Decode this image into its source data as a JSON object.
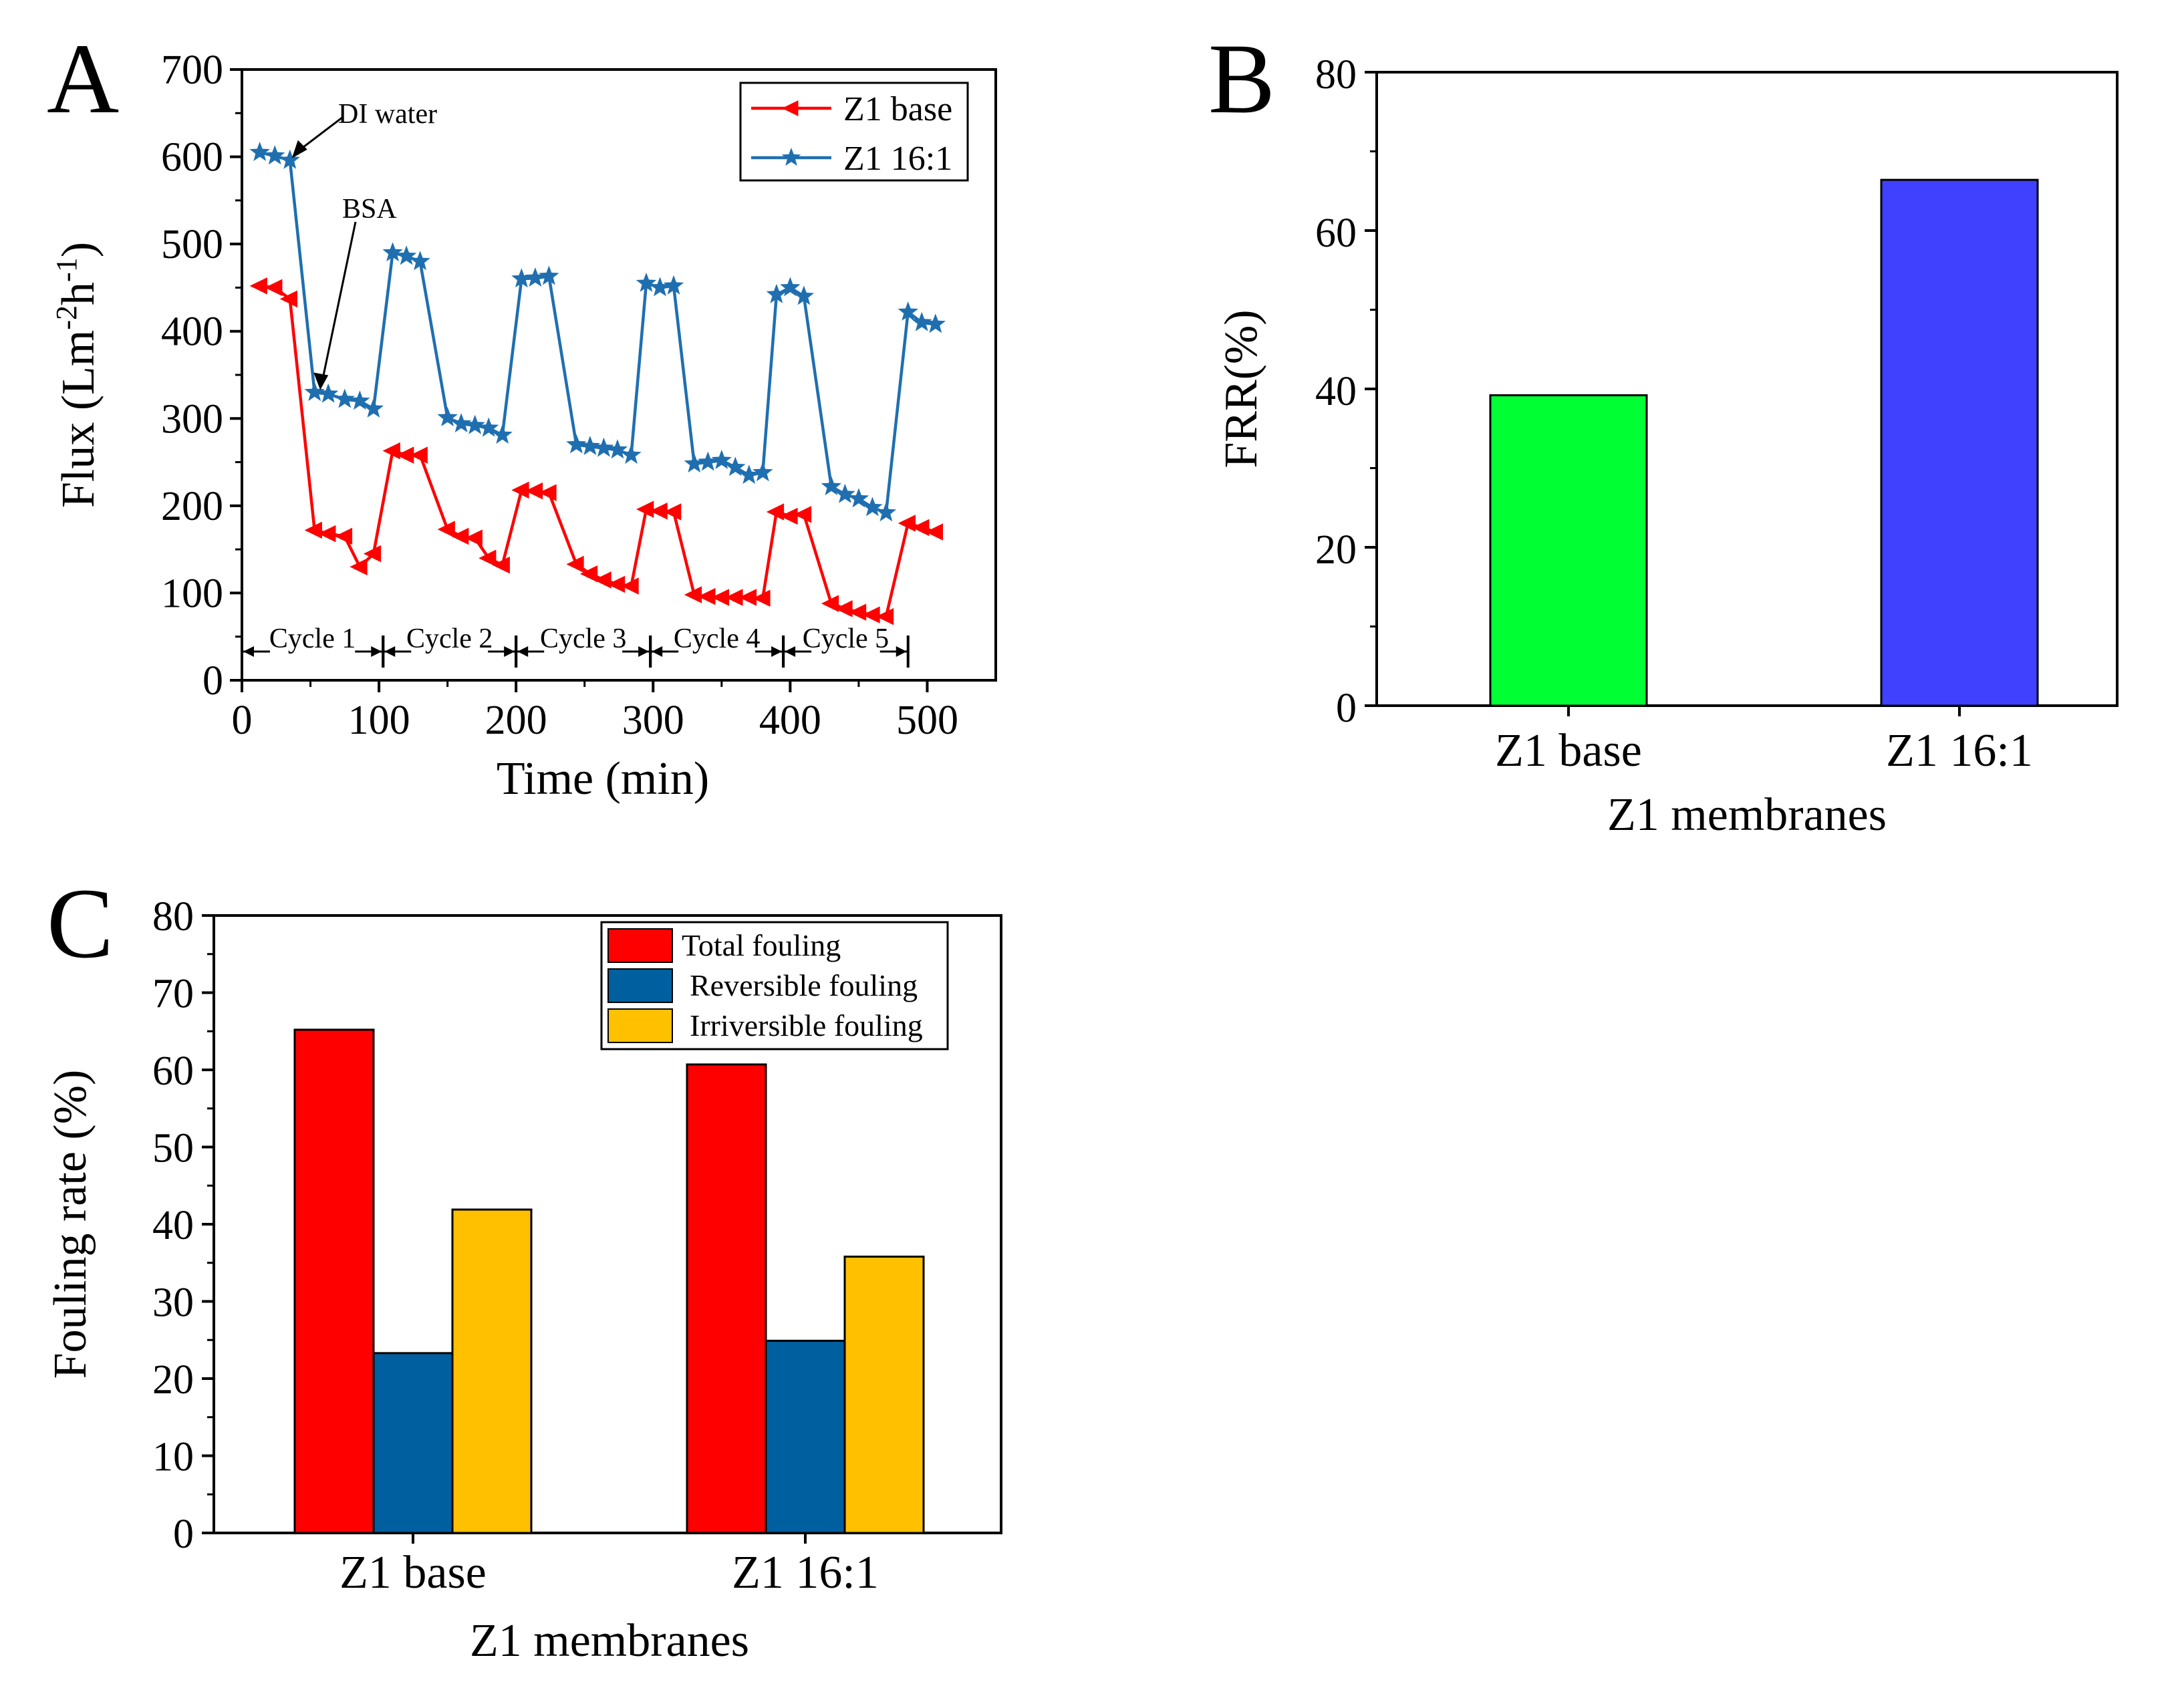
{
  "chart_data": [
    {
      "panel": "A",
      "type": "line",
      "title": "",
      "xlabel": "Time (min)",
      "ylabel_parts": [
        "Flux (Lm",
        "-2",
        "h",
        "-1",
        ")"
      ],
      "xlim": [
        0,
        550
      ],
      "ylim": [
        0,
        700
      ],
      "xticks": [
        0,
        100,
        200,
        300,
        400,
        500
      ],
      "yticks": [
        0,
        100,
        200,
        300,
        400,
        500,
        600,
        700
      ],
      "grid": false,
      "legend_position": "top-right",
      "series": [
        {
          "name": "Z1 base",
          "color": "#ff0000",
          "marker": "left-triangle",
          "x": [
            13,
            24,
            35,
            53,
            63,
            75,
            86,
            96,
            110,
            120,
            130,
            150,
            160,
            170,
            180,
            190,
            204,
            214,
            224,
            244,
            254,
            264,
            274,
            284,
            295,
            305,
            315,
            330,
            340,
            350,
            360,
            370,
            380,
            390,
            400,
            410,
            430,
            440,
            450,
            460,
            470,
            486,
            496,
            506
          ],
          "y": [
            452,
            450,
            437,
            172,
            168,
            165,
            130,
            145,
            263,
            258,
            258,
            173,
            165,
            163,
            140,
            132,
            218,
            217,
            215,
            133,
            122,
            115,
            110,
            108,
            196,
            194,
            193,
            98,
            96,
            95,
            95,
            95,
            94,
            193,
            188,
            190,
            88,
            82,
            78,
            75,
            73,
            180,
            175,
            170
          ]
        },
        {
          "name": "Z1 16:1",
          "color": "#1f6fb0",
          "marker": "star",
          "x": [
            13,
            24,
            35,
            53,
            63,
            75,
            86,
            96,
            110,
            120,
            130,
            150,
            160,
            170,
            180,
            190,
            204,
            214,
            224,
            244,
            254,
            264,
            274,
            284,
            295,
            305,
            315,
            330,
            340,
            350,
            360,
            370,
            380,
            390,
            400,
            410,
            430,
            440,
            450,
            460,
            470,
            486,
            496,
            506
          ],
          "y": [
            605,
            601,
            596,
            330,
            328,
            322,
            320,
            311,
            490,
            486,
            480,
            301,
            294,
            292,
            289,
            281,
            460,
            461,
            463,
            270,
            268,
            266,
            264,
            258,
            455,
            450,
            452,
            248,
            250,
            252,
            244,
            235,
            238,
            442,
            450,
            440,
            222,
            213,
            208,
            198,
            192,
            422,
            410,
            408
          ]
        }
      ],
      "annotations": [
        {
          "text": "DI water",
          "x": 35,
          "y": 596
        },
        {
          "text": "BSA",
          "x": 63,
          "y": 322
        }
      ],
      "cycles": [
        {
          "label": "Cycle 1",
          "start": 0,
          "end": 103
        },
        {
          "label": "Cycle 2",
          "start": 103,
          "end": 200
        },
        {
          "label": "Cycle 3",
          "start": 200,
          "end": 298
        },
        {
          "label": "Cycle 4",
          "start": 298,
          "end": 395
        },
        {
          "label": "Cycle 5",
          "start": 395,
          "end": 486
        }
      ]
    },
    {
      "panel": "B",
      "type": "bar",
      "title": "",
      "xlabel": "Z1 membranes",
      "ylabel": "FRR(%)",
      "ylim": [
        0,
        80
      ],
      "yticks": [
        0,
        20,
        40,
        60,
        80
      ],
      "grid": false,
      "categories": [
        "Z1 base",
        "Z1 16:1"
      ],
      "values": [
        39.2,
        66.4
      ],
      "colors": [
        "#00ff33",
        "#4040ff"
      ]
    },
    {
      "panel": "C",
      "type": "bar",
      "title": "",
      "xlabel": "Z1 membranes",
      "ylabel": "Fouling rate (%)",
      "ylim": [
        0,
        80
      ],
      "yticks": [
        0,
        10,
        20,
        30,
        40,
        50,
        60,
        70,
        80
      ],
      "grid": false,
      "legend_position": "top-right",
      "categories": [
        "Z1 base",
        "Z1 16:1"
      ],
      "series": [
        {
          "name": "Total fouling",
          "color": "#ff0000",
          "values": [
            65.2,
            60.7
          ]
        },
        {
          "name": "Reversible fouling",
          "color": "#005f9e",
          "values": [
            23.3,
            24.9
          ]
        },
        {
          "name": "Irriversible fouling",
          "color": "#ffc000",
          "values": [
            41.9,
            35.8
          ]
        }
      ]
    }
  ]
}
